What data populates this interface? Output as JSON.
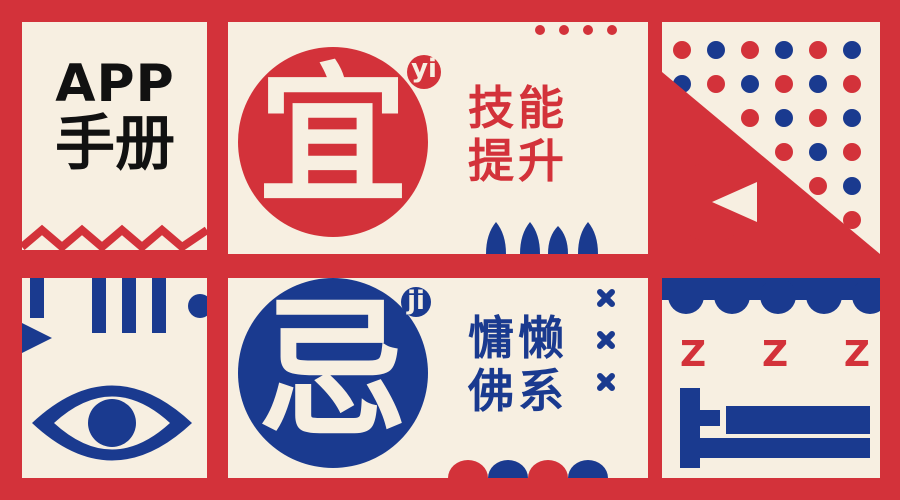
{
  "poster": {
    "title_line1": "APP",
    "title_line2": "手册",
    "good": {
      "char": "宜",
      "pinyin": "yi",
      "line1": "技能",
      "line2": "提升"
    },
    "bad": {
      "char": "忌",
      "pinyin": "ji",
      "line1": "慵懒",
      "line2": "佛系"
    },
    "sleep_letters": [
      "Z",
      "Z",
      "Z"
    ]
  },
  "colors": {
    "red": "#d3323a",
    "blue": "#1a3a8f",
    "cream": "#f7efe1",
    "black": "#111111"
  },
  "icons": [
    "eye-icon",
    "bed-icon",
    "dot-pattern",
    "pac-shape",
    "drop-shapes",
    "cross-marks",
    "zigzag-line"
  ]
}
